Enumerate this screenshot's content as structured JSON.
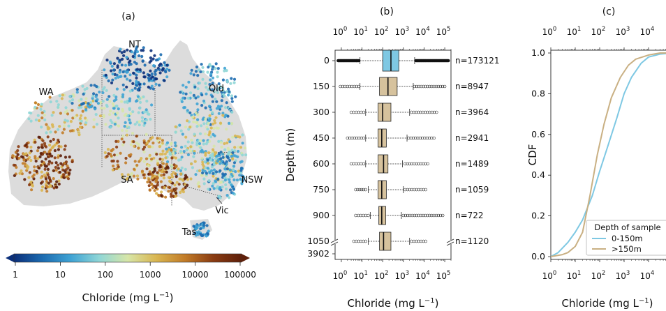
{
  "panel_a": {
    "label": "(a)",
    "regions": [
      "NT",
      "WA",
      "Qld",
      "SA",
      "NSW",
      "Vic",
      "Tas"
    ],
    "colorbar": {
      "ticks": [
        "1",
        "10",
        "100",
        "1000",
        "10000",
        "100000"
      ],
      "label": "Chloride (mg L",
      "label_sup": "−1",
      "label_end": ")",
      "colors": [
        "#0b2f7a",
        "#1c6bb0",
        "#3fa3d4",
        "#8fd6d6",
        "#d7e6a8",
        "#d9b651",
        "#c27c28",
        "#8a3c12",
        "#5e1f0a"
      ]
    }
  },
  "chart_data": [
    {
      "type": "box",
      "panel": "(b)",
      "xlabel": "Chloride (mg L",
      "xlabel_sup": "−1",
      "xlabel_end": ")",
      "ylabel": "Depth (m)",
      "xscale": "log",
      "xlim": [
        0.5,
        200000
      ],
      "x_ticks": [
        1,
        10,
        100,
        1000,
        10000,
        100000
      ],
      "x_tick_labels": [
        "10",
        "10",
        "10",
        "10",
        "10",
        "10"
      ],
      "x_tick_exps": [
        "0",
        "1",
        "2",
        "3",
        "4",
        "5"
      ],
      "y_ticks": [
        "0",
        "150",
        "300",
        "450",
        "600",
        "750",
        "900",
        "1050",
        "3902"
      ],
      "boxes": [
        {
          "depth": 0,
          "n": "n=173121",
          "whislo": 8,
          "q1": 100,
          "med": 250,
          "q3": 600,
          "whishi": 3500,
          "flier_lo": [
            0.7,
            7
          ],
          "flier_hi": [
            4000,
            150000
          ],
          "color": "#7ec8e3"
        },
        {
          "depth": 150,
          "n": "n=8947",
          "whislo": 8,
          "q1": 70,
          "med": 180,
          "q3": 500,
          "whishi": 3000,
          "flier_lo": [
            0.9,
            7
          ],
          "flier_hi": [
            3500,
            100000
          ],
          "color": "#d6c29d"
        },
        {
          "depth": 300,
          "n": "n=3964",
          "whislo": 15,
          "q1": 60,
          "med": 100,
          "q3": 250,
          "whishi": 2000,
          "flier_lo": [
            3,
            12
          ],
          "flier_hi": [
            2500,
            40000
          ],
          "color": "#d6c29d"
        },
        {
          "depth": 450,
          "n": "n=2941",
          "whislo": 15,
          "q1": 60,
          "med": 90,
          "q3": 150,
          "whishi": 1500,
          "flier_lo": [
            2,
            12
          ],
          "flier_hi": [
            1800,
            30000
          ],
          "color": "#d6c29d"
        },
        {
          "depth": 600,
          "n": "n=1489",
          "whislo": 15,
          "q1": 60,
          "med": 110,
          "q3": 180,
          "whishi": 900,
          "flier_lo": [
            3,
            12
          ],
          "flier_hi": [
            1200,
            15000
          ],
          "color": "#d6c29d"
        },
        {
          "depth": 750,
          "n": "n=1059",
          "whislo": 20,
          "q1": 60,
          "med": 90,
          "q3": 150,
          "whishi": 1000,
          "flier_lo": [
            5,
            15
          ],
          "flier_hi": [
            1200,
            12000
          ],
          "color": "#d6c29d"
        },
        {
          "depth": 900,
          "n": "n=722",
          "whislo": 25,
          "q1": 65,
          "med": 90,
          "q3": 140,
          "whishi": 800,
          "flier_lo": [
            5,
            20
          ],
          "flier_hi": [
            1000,
            80000
          ],
          "color": "#d6c29d"
        },
        {
          "depth": 1050,
          "n": "n=1120",
          "whislo": 20,
          "q1": 70,
          "med": 110,
          "q3": 250,
          "whishi": 2000,
          "flier_lo": [
            4,
            15
          ],
          "flier_hi": [
            2500,
            12000
          ],
          "color": "#d6c29d"
        }
      ]
    },
    {
      "type": "line",
      "panel": "(c)",
      "xlabel": "Chloride (mg L",
      "xlabel_sup": "−1",
      "xlabel_end": ")",
      "ylabel": "CDF",
      "xscale": "log",
      "xlim": [
        1,
        100000
      ],
      "ylim": [
        0,
        1
      ],
      "x_ticks": [
        1,
        10,
        100,
        1000,
        10000
      ],
      "x_tick_labels": [
        "10",
        "10",
        "10",
        "10",
        "10"
      ],
      "x_tick_exps": [
        "0",
        "1",
        "2",
        "3",
        "4"
      ],
      "y_ticks": [
        "0.0",
        "0.2",
        "0.4",
        "0.6",
        "0.8",
        "1.0"
      ],
      "legend_title": "Depth of sample",
      "legend_position": "lower-right",
      "series": [
        {
          "name": "0-150m",
          "color": "#7ec8e3",
          "x": [
            1,
            2,
            5,
            10,
            20,
            50,
            100,
            200,
            500,
            1000,
            2000,
            5000,
            10000,
            30000,
            100000
          ],
          "y": [
            0.0,
            0.02,
            0.07,
            0.12,
            0.18,
            0.3,
            0.42,
            0.53,
            0.68,
            0.8,
            0.88,
            0.95,
            0.98,
            0.995,
            1.0
          ]
        },
        {
          "name": ">150m",
          "color": "#c9b083",
          "x": [
            1,
            3,
            5,
            10,
            20,
            40,
            80,
            150,
            300,
            700,
            1500,
            3000,
            10000,
            30000,
            100000
          ],
          "y": [
            0.0,
            0.01,
            0.02,
            0.05,
            0.12,
            0.3,
            0.5,
            0.65,
            0.78,
            0.88,
            0.94,
            0.97,
            0.99,
            1.0,
            1.0
          ]
        }
      ]
    }
  ]
}
